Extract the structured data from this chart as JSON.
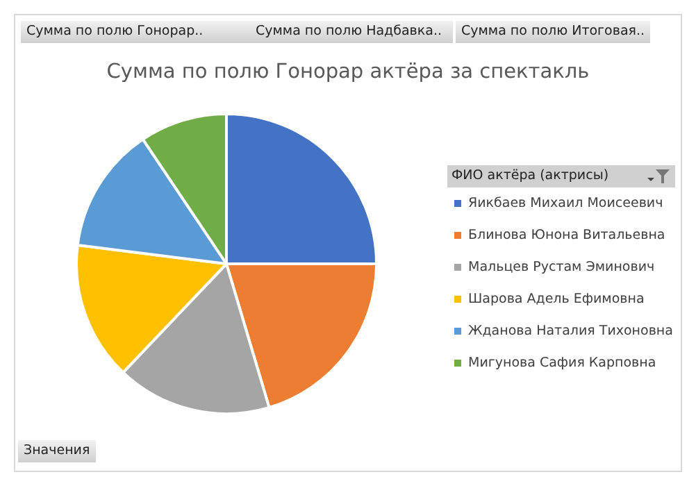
{
  "chart_data": {
    "type": "pie",
    "title": "Сумма по полю Гонорар актёра за спектакль",
    "legend_title": "ФИО актёра (актрисы)",
    "categories": [
      "Яикбаев Михаил Моисеевич",
      "Блинова Юнона Витальевна",
      "Мальцев Рустам Эминович",
      "Шарова Адель Ефимовна",
      "Жданова Наталия Тихоновна",
      "Мигунова Сафия Карповна"
    ],
    "values": [
      25,
      20.4,
      16.7,
      14.9,
      13.6,
      9.4
    ],
    "colors": [
      "#4472c4",
      "#ed7d31",
      "#a5a5a5",
      "#ffc000",
      "#5b9bd5",
      "#70ad47"
    ],
    "legend": "right",
    "annotations": [
      "Сумма по полю Гонорар..",
      "Сумма по полю Надбавка..",
      "Сумма по полю Итоговая..",
      "Значения"
    ]
  }
}
